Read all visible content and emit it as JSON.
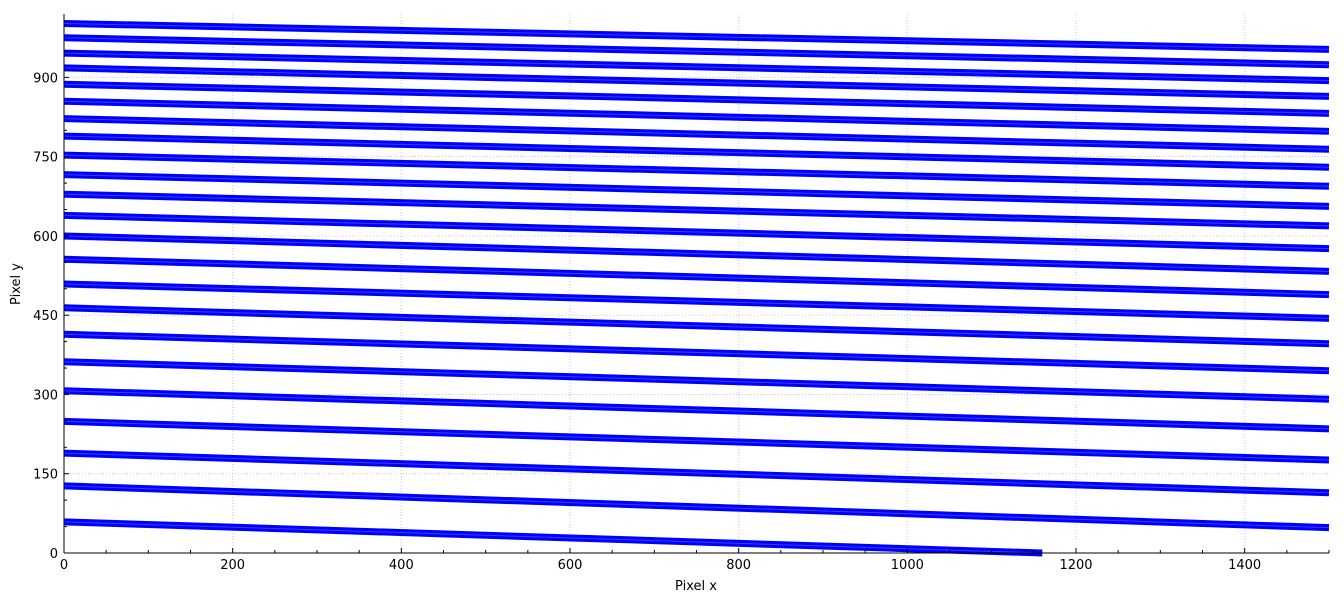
{
  "chart_data": {
    "type": "line",
    "title": "",
    "xlabel": "Pixel x",
    "ylabel": "Pixel y",
    "xlim": [
      0,
      1500
    ],
    "ylim": [
      0,
      1020
    ],
    "xticks": [
      0,
      200,
      400,
      600,
      800,
      1000,
      1200,
      1400
    ],
    "yticks": [
      0,
      150,
      300,
      450,
      600,
      750,
      900
    ],
    "grid": true,
    "line_color": "#0000ff",
    "series": [
      {
        "values": [
          [
            0,
            59
          ],
          [
            1160,
            0
          ]
        ]
      },
      {
        "values": [
          [
            0,
            127
          ],
          [
            1500,
            48
          ]
        ]
      },
      {
        "values": [
          [
            0,
            189
          ],
          [
            1500,
            114
          ]
        ]
      },
      {
        "values": [
          [
            0,
            249
          ],
          [
            1500,
            176
          ]
        ]
      },
      {
        "values": [
          [
            0,
            307
          ],
          [
            1500,
            235
          ]
        ]
      },
      {
        "values": [
          [
            0,
            362
          ],
          [
            1500,
            291
          ]
        ]
      },
      {
        "values": [
          [
            0,
            414
          ],
          [
            1500,
            345
          ]
        ]
      },
      {
        "values": [
          [
            0,
            464
          ],
          [
            1500,
            396
          ]
        ]
      },
      {
        "values": [
          [
            0,
            509
          ],
          [
            1500,
            444
          ]
        ]
      },
      {
        "values": [
          [
            0,
            556
          ],
          [
            1500,
            489
          ]
        ]
      },
      {
        "values": [
          [
            0,
            600
          ],
          [
            1500,
            533
          ]
        ]
      },
      {
        "values": [
          [
            0,
            639
          ],
          [
            1500,
            576
          ]
        ]
      },
      {
        "values": [
          [
            0,
            679
          ],
          [
            1500,
            619
          ]
        ]
      },
      {
        "values": [
          [
            0,
            716
          ],
          [
            1500,
            656
          ]
        ]
      },
      {
        "values": [
          [
            0,
            753
          ],
          [
            1500,
            694
          ]
        ]
      },
      {
        "values": [
          [
            0,
            789
          ],
          [
            1500,
            730
          ]
        ]
      },
      {
        "values": [
          [
            0,
            822
          ],
          [
            1500,
            764
          ]
        ]
      },
      {
        "values": [
          [
            0,
            855
          ],
          [
            1500,
            798
          ]
        ]
      },
      {
        "values": [
          [
            0,
            887
          ],
          [
            1500,
            832
          ]
        ]
      },
      {
        "values": [
          [
            0,
            918
          ],
          [
            1500,
            864
          ]
        ]
      },
      {
        "values": [
          [
            0,
            946
          ],
          [
            1500,
            894
          ]
        ]
      },
      {
        "values": [
          [
            0,
            975
          ],
          [
            1500,
            924
          ]
        ]
      },
      {
        "values": [
          [
            0,
            1002
          ],
          [
            1500,
            953
          ]
        ]
      }
    ]
  }
}
